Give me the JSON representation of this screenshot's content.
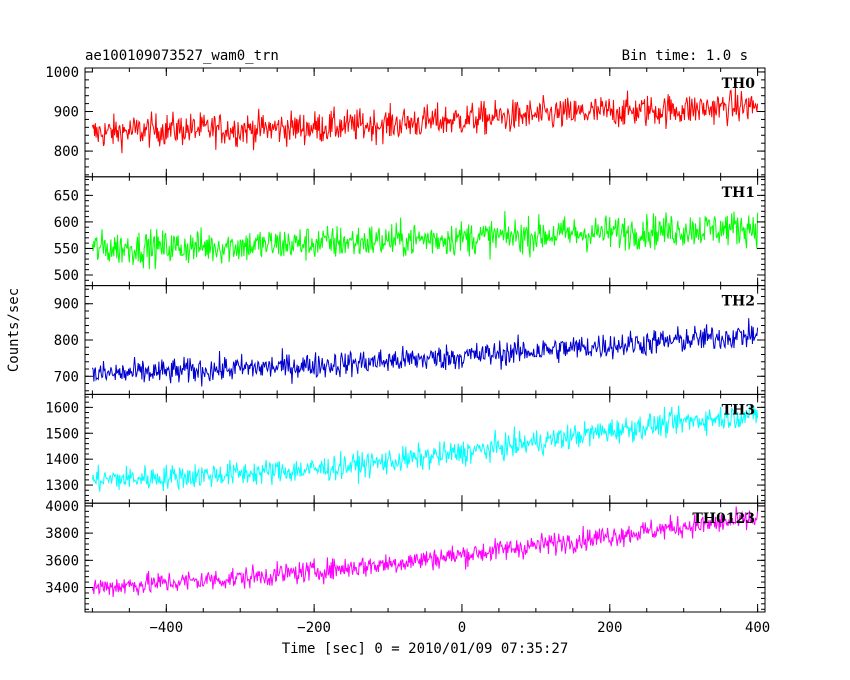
{
  "chart_data": {
    "type": "line",
    "title": "ae100109073527_wam0_trn",
    "subtitle": "Bin time: 1.0 s",
    "xlabel": "Time [sec] 0 = 2010/01/09 07:35:27",
    "ylabel": "Counts/sec",
    "xlim": [
      -510,
      410
    ],
    "x_ticks": [
      -400,
      -200,
      0,
      200,
      400
    ],
    "x_tick_labels": [
      "−400",
      "−200",
      "0",
      "200",
      "400"
    ],
    "series": [
      {
        "name": "TH0",
        "color": "#ff0000",
        "ylim": [
          735,
          1010
        ],
        "y_ticks": [
          800,
          900,
          1000
        ],
        "x": [
          -500,
          -400,
          -300,
          -200,
          -100,
          0,
          100,
          200,
          300,
          400
        ],
        "values": [
          845,
          855,
          855,
          860,
          868,
          880,
          890,
          900,
          905,
          915
        ],
        "noise": 38
      },
      {
        "name": "TH1",
        "color": "#00ff00",
        "ylim": [
          480,
          685
        ],
        "y_ticks": [
          500,
          550,
          600,
          650
        ],
        "x": [
          -500,
          -400,
          -300,
          -200,
          -100,
          0,
          100,
          200,
          300,
          400
        ],
        "values": [
          550,
          552,
          555,
          560,
          565,
          570,
          575,
          580,
          585,
          590
        ],
        "noise": 30
      },
      {
        "name": "TH2",
        "color": "#0000d0",
        "ylim": [
          650,
          950
        ],
        "y_ticks": [
          700,
          800,
          900
        ],
        "x": [
          -500,
          -400,
          -300,
          -200,
          -100,
          0,
          100,
          200,
          300,
          400
        ],
        "values": [
          705,
          712,
          722,
          730,
          742,
          755,
          770,
          785,
          800,
          815
        ],
        "noise": 33
      },
      {
        "name": "TH3",
        "color": "#00ffff",
        "ylim": [
          1230,
          1650
        ],
        "y_ticks": [
          1300,
          1400,
          1500,
          1600
        ],
        "x": [
          -500,
          -400,
          -300,
          -200,
          -100,
          0,
          100,
          200,
          300,
          400
        ],
        "values": [
          1320,
          1330,
          1345,
          1360,
          1390,
          1425,
          1465,
          1510,
          1545,
          1575
        ],
        "noise": 45
      },
      {
        "name": "TH0123",
        "color": "#ff00ff",
        "ylim": [
          3220,
          4020
        ],
        "y_ticks": [
          3400,
          3600,
          3800,
          4000
        ],
        "x": [
          -500,
          -400,
          -300,
          -200,
          -100,
          0,
          100,
          200,
          300,
          400
        ],
        "values": [
          3400,
          3435,
          3470,
          3520,
          3575,
          3640,
          3710,
          3780,
          3850,
          3900
        ],
        "noise": 75
      }
    ]
  }
}
